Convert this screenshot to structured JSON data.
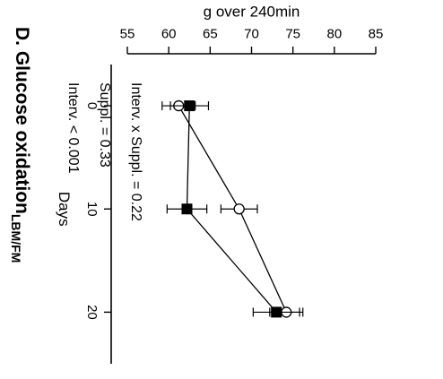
{
  "chart_data": {
    "type": "line",
    "title": "D. Glucose oxidation",
    "title_subscript": "LBM/FM",
    "xlabel": "Days",
    "ylabel": "g over 240min",
    "x": [
      0,
      10,
      20
    ],
    "x_ticks": [
      "0",
      "10",
      "20"
    ],
    "xlim": [
      -4,
      25
    ],
    "ylim": [
      55,
      85
    ],
    "y_ticks": [
      "55",
      "60",
      "65",
      "70",
      "75",
      "80",
      "85"
    ],
    "grid": false,
    "orientation": "rotated-90-clockwise",
    "series": [
      {
        "marker": "open-circle",
        "color": "#000000",
        "values": [
          61.2,
          68.5,
          74.2
        ],
        "errors": [
          2.0,
          2.2,
          2.0
        ]
      },
      {
        "marker": "filled-square",
        "color": "#000000",
        "values": [
          62.5,
          62.2,
          73.0
        ],
        "errors": [
          2.3,
          2.4,
          2.8
        ]
      }
    ],
    "annotations": [
      "Interv. < 0.001",
      "Suppl. = 0.33",
      "Interv. x Suppl. = 0.22"
    ]
  }
}
